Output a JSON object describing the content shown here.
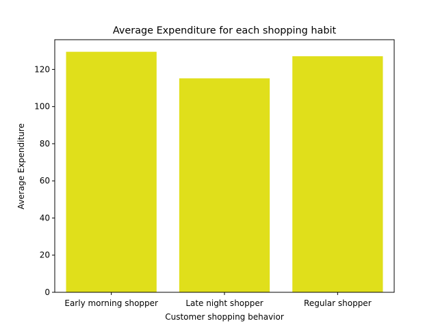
{
  "chart_data": {
    "type": "bar",
    "title": "Average Expenditure for each shopping habit",
    "xlabel": "Customer shopping behavior",
    "ylabel": "Average Expenditure",
    "categories": [
      "Early morning shopper",
      "Late night shopper",
      "Regular shopper"
    ],
    "values": [
      129.5,
      115.2,
      127.1
    ],
    "ylim": [
      0,
      136
    ],
    "yticks": [
      0,
      20,
      40,
      60,
      80,
      100,
      120
    ],
    "bar_color": "#e0df1b",
    "grid": false,
    "legend": "none"
  }
}
